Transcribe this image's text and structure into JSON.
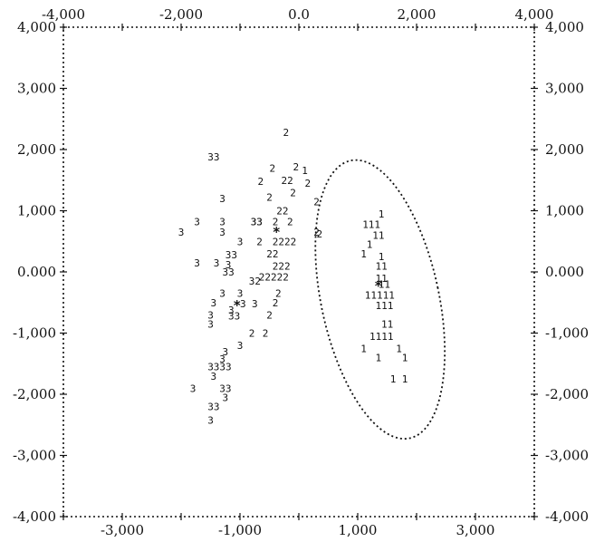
{
  "chart_data": {
    "type": "scatter",
    "title": "",
    "xlabel": "",
    "ylabel": "",
    "xlim": [
      -4,
      4
    ],
    "ylim": [
      -4,
      4
    ],
    "top_ticks": {
      "values": [
        -4,
        -2,
        0,
        2,
        4
      ],
      "labels": [
        "-4,000",
        "-2,000",
        "0.0",
        "2,000",
        "4,000"
      ]
    },
    "bottom_ticks": {
      "values": [
        -3,
        -1,
        1,
        3
      ],
      "labels": [
        "-3,000",
        "-1,000",
        "1,000",
        "3,000"
      ]
    },
    "left_ticks": {
      "values": [
        4,
        3,
        2,
        1,
        0,
        -1,
        -2,
        -3,
        -4
      ],
      "labels": [
        "4,000",
        "3,000",
        "2,000",
        "1,000",
        "0.000",
        "-1,000",
        "-2,000",
        "-3,000",
        "-4,000"
      ]
    },
    "right_ticks": {
      "values": [
        4,
        3,
        2,
        1,
        0,
        -1,
        -2,
        -3,
        -4
      ],
      "labels": [
        "4,000",
        "3,000",
        "2,000",
        "1,000",
        "0.000",
        "-1,000",
        "-2,000",
        "-3,000",
        "-4,000"
      ]
    },
    "grid": false,
    "series": [
      {
        "name": "1",
        "centroid": {
          "x": 1.35,
          "y": -0.2
        },
        "points": [
          {
            "x": 0.05,
            "y": 1.66,
            "label": "1"
          },
          {
            "x": 1.35,
            "y": 0.95,
            "label": "1"
          },
          {
            "x": 1.08,
            "y": 0.78,
            "label": "111"
          },
          {
            "x": 1.25,
            "y": 0.6,
            "label": "11"
          },
          {
            "x": 1.15,
            "y": 0.45,
            "label": "1"
          },
          {
            "x": 1.05,
            "y": 0.3,
            "label": "1"
          },
          {
            "x": 1.35,
            "y": 0.25,
            "label": "1"
          },
          {
            "x": 1.3,
            "y": 0.1,
            "label": "11"
          },
          {
            "x": 1.3,
            "y": -0.1,
            "label": "11"
          },
          {
            "x": 1.35,
            "y": -0.2,
            "label": "11"
          },
          {
            "x": 1.12,
            "y": -0.38,
            "label": "11111"
          },
          {
            "x": 1.3,
            "y": -0.55,
            "label": "111"
          },
          {
            "x": 1.4,
            "y": -0.85,
            "label": "11"
          },
          {
            "x": 1.2,
            "y": -1.05,
            "label": "1111"
          },
          {
            "x": 1.05,
            "y": -1.25,
            "label": "1"
          },
          {
            "x": 1.65,
            "y": -1.25,
            "label": "1"
          },
          {
            "x": 1.3,
            "y": -1.4,
            "label": "1"
          },
          {
            "x": 1.75,
            "y": -1.4,
            "label": "1"
          },
          {
            "x": 1.55,
            "y": -1.75,
            "label": "1"
          },
          {
            "x": 1.75,
            "y": -1.75,
            "label": "1"
          }
        ],
        "ellipse": {
          "cx": 1.38,
          "cy": -0.45,
          "rx": 1.0,
          "ry": 2.32,
          "rotation_deg": -12
        }
      },
      {
        "name": "2",
        "centroid": {
          "x": -0.38,
          "y": 0.68
        },
        "points": [
          {
            "x": -0.27,
            "y": 2.28,
            "label": "2"
          },
          {
            "x": -0.5,
            "y": 1.7,
            "label": "2"
          },
          {
            "x": -0.1,
            "y": 1.72,
            "label": "2"
          },
          {
            "x": -0.7,
            "y": 1.48,
            "label": "2"
          },
          {
            "x": -0.3,
            "y": 1.5,
            "label": "22"
          },
          {
            "x": 0.1,
            "y": 1.45,
            "label": "2"
          },
          {
            "x": -0.55,
            "y": 1.22,
            "label": "2"
          },
          {
            "x": -0.15,
            "y": 1.3,
            "label": "2"
          },
          {
            "x": 0.25,
            "y": 1.15,
            "label": "2"
          },
          {
            "x": -0.38,
            "y": 1.0,
            "label": "22"
          },
          {
            "x": -0.82,
            "y": 0.82,
            "label": "33"
          },
          {
            "x": -0.45,
            "y": 0.82,
            "label": "2"
          },
          {
            "x": -0.2,
            "y": 0.82,
            "label": "2"
          },
          {
            "x": 0.25,
            "y": 0.65,
            "label": "2"
          },
          {
            "x": -0.72,
            "y": 0.5,
            "label": "2"
          },
          {
            "x": -0.45,
            "y": 0.5,
            "label": "2222"
          },
          {
            "x": -0.55,
            "y": 0.3,
            "label": "22"
          },
          {
            "x": -0.45,
            "y": 0.1,
            "label": "222"
          },
          {
            "x": -0.68,
            "y": -0.08,
            "label": "22222"
          },
          {
            "x": -0.4,
            "y": -0.35,
            "label": "2"
          },
          {
            "x": -0.45,
            "y": -0.5,
            "label": "2"
          },
          {
            "x": -0.55,
            "y": -0.7,
            "label": "2"
          },
          {
            "x": -0.85,
            "y": -1.0,
            "label": "2"
          },
          {
            "x": -0.62,
            "y": -1.0,
            "label": "2"
          },
          {
            "x": 0.3,
            "y": 0.62,
            "label": "2"
          }
        ]
      },
      {
        "name": "3",
        "centroid": {
          "x": -1.05,
          "y": -0.52
        },
        "points": [
          {
            "x": -1.55,
            "y": 1.88,
            "label": "33"
          },
          {
            "x": -1.35,
            "y": 1.2,
            "label": "3"
          },
          {
            "x": -1.78,
            "y": 0.82,
            "label": "3"
          },
          {
            "x": -1.35,
            "y": 0.82,
            "label": "3"
          },
          {
            "x": -0.82,
            "y": 0.82,
            "label": "33"
          },
          {
            "x": -2.05,
            "y": 0.65,
            "label": "3"
          },
          {
            "x": -1.35,
            "y": 0.65,
            "label": "3"
          },
          {
            "x": -1.05,
            "y": 0.5,
            "label": "3"
          },
          {
            "x": -1.25,
            "y": 0.28,
            "label": "33"
          },
          {
            "x": -1.78,
            "y": 0.15,
            "label": "3"
          },
          {
            "x": -1.45,
            "y": 0.15,
            "label": "3"
          },
          {
            "x": -1.25,
            "y": 0.12,
            "label": "3"
          },
          {
            "x": -1.3,
            "y": 0.0,
            "label": "33"
          },
          {
            "x": -0.85,
            "y": -0.15,
            "label": "32"
          },
          {
            "x": -1.35,
            "y": -0.35,
            "label": "3"
          },
          {
            "x": -1.05,
            "y": -0.35,
            "label": "3"
          },
          {
            "x": -1.5,
            "y": -0.5,
            "label": "3"
          },
          {
            "x": -1.0,
            "y": -0.52,
            "label": "3"
          },
          {
            "x": -0.8,
            "y": -0.52,
            "label": "3"
          },
          {
            "x": -1.2,
            "y": -0.62,
            "label": "3"
          },
          {
            "x": -1.55,
            "y": -0.7,
            "label": "3"
          },
          {
            "x": -1.2,
            "y": -0.72,
            "label": "33"
          },
          {
            "x": -1.55,
            "y": -0.85,
            "label": "3"
          },
          {
            "x": -1.05,
            "y": -1.2,
            "label": "3"
          },
          {
            "x": -1.3,
            "y": -1.3,
            "label": "3"
          },
          {
            "x": -1.35,
            "y": -1.42,
            "label": "3"
          },
          {
            "x": -1.55,
            "y": -1.55,
            "label": "3"
          },
          {
            "x": -1.45,
            "y": -1.55,
            "label": "333"
          },
          {
            "x": -1.5,
            "y": -1.7,
            "label": "3"
          },
          {
            "x": -1.85,
            "y": -1.9,
            "label": "3"
          },
          {
            "x": -1.35,
            "y": -1.9,
            "label": "33"
          },
          {
            "x": -1.3,
            "y": -2.05,
            "label": "3"
          },
          {
            "x": -1.55,
            "y": -2.2,
            "label": "33"
          },
          {
            "x": -1.55,
            "y": -2.42,
            "label": "3"
          }
        ]
      }
    ]
  }
}
